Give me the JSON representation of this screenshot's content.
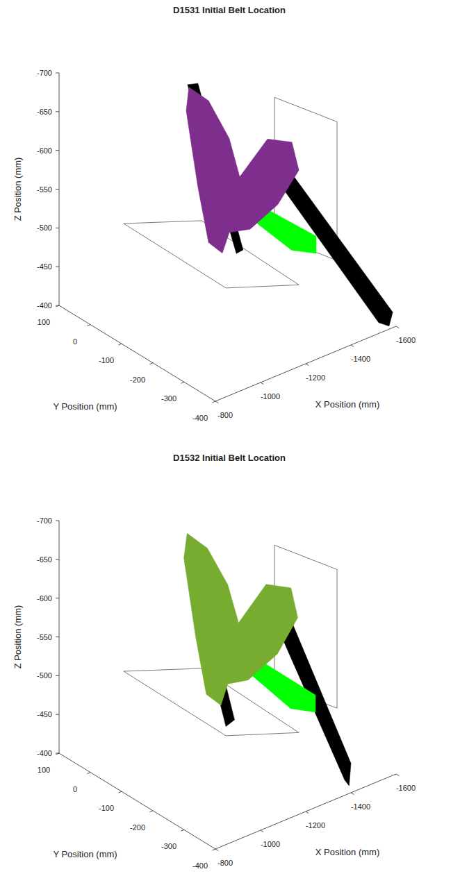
{
  "chart_data": [
    {
      "type": "scatter3d",
      "title": "D1531 Initial Belt Location",
      "xlabel": "X Position (mm)",
      "ylabel": "Y Position (mm)",
      "zlabel": "Z Position (mm)",
      "xlim": [
        -1600,
        -800
      ],
      "ylim": [
        -400,
        100
      ],
      "zlim": [
        -700,
        -400
      ],
      "xticks": [
        -1600,
        -1400,
        -1200,
        -1000,
        -800
      ],
      "yticks": [
        -400,
        -300,
        -200,
        -100,
        0,
        100
      ],
      "zticks": [
        -700,
        -650,
        -600,
        -550,
        -500,
        -450,
        -400
      ],
      "series": [
        {
          "type": "line",
          "color": "#555555",
          "values": [
            [
              -809,
              -100,
              -554
            ],
            [
              -1154,
              -100,
              -516
            ],
            [
              -1308,
              -300,
              -464
            ],
            [
              -985,
              -300,
              -499
            ]
          ]
        },
        {
          "type": "line",
          "color": "#555555",
          "values": [
            [
              -1477,
              -100,
              -636
            ],
            [
              -1477,
              -300,
              -654
            ],
            [
              -1477,
              -300,
              -475
            ],
            [
              -1477,
              -100,
              -457
            ]
          ]
        },
        {
          "type": "area",
          "color": "#000000",
          "values": [
            [
              -1092,
              -100,
              -699
            ],
            [
              -1138,
              -100,
              -695
            ],
            [
              -1338,
              -100,
              -456
            ],
            [
              -1308,
              -100,
              -455
            ]
          ]
        },
        {
          "type": "area",
          "color": "#000000",
          "values": [
            [
              -1369,
              -200,
              -580
            ],
            [
              -1415,
              -200,
              -570
            ],
            [
              -1585,
              -400,
              -420
            ],
            [
              -1569,
              -400,
              -404
            ],
            [
              -1523,
              -400,
              -414
            ],
            [
              -1354,
              -200,
              -567
            ]
          ]
        },
        {
          "type": "area",
          "color": "#00ff00",
          "values": [
            [
              -1123,
              -200,
              -594
            ],
            [
              -1185,
              -200,
              -571
            ],
            [
              -1523,
              -200,
              -476
            ],
            [
              -1523,
              -200,
              -454
            ],
            [
              -1415,
              -200,
              -471
            ],
            [
              -1138,
              -200,
              -567
            ]
          ]
        },
        {
          "type": "area",
          "color": "#7e2f8e",
          "values": [
            [
              -1098,
              -100,
              -695
            ],
            [
              -1185,
              -100,
              -667
            ],
            [
              -1277,
              -100,
              -607
            ],
            [
              -1323,
              -100,
              -552
            ],
            [
              -1446,
              -100,
              -586
            ],
            [
              -1554,
              -100,
              -569
            ],
            [
              -1585,
              -100,
              -529
            ],
            [
              -1492,
              -100,
              -496
            ],
            [
              -1369,
              -100,
              -479
            ],
            [
              -1277,
              -100,
              -486
            ],
            [
              -1246,
              -100,
              -463
            ],
            [
              -1185,
              -100,
              -484
            ],
            [
              -1138,
              -100,
              -561
            ],
            [
              -1086,
              -100,
              -666
            ]
          ]
        }
      ]
    },
    {
      "type": "scatter3d",
      "title": "D1532 Initial Belt Location",
      "xlabel": "X Position (mm)",
      "ylabel": "Y Position (mm)",
      "zlabel": "Z Position (mm)",
      "xlim": [
        -1600,
        -800
      ],
      "ylim": [
        -400,
        100
      ],
      "zlim": [
        -700,
        -400
      ],
      "xticks": [
        -1600,
        -1400,
        -1200,
        -1000,
        -800
      ],
      "yticks": [
        -400,
        -300,
        -200,
        -100,
        0,
        100
      ],
      "zticks": [
        -700,
        -650,
        -600,
        -550,
        -500,
        -450,
        -400
      ],
      "series": [
        {
          "type": "line",
          "color": "#555555",
          "values": [
            [
              -809,
              -100,
              -554
            ],
            [
              -1154,
              -100,
              -516
            ],
            [
              -1308,
              -300,
              -464
            ],
            [
              -985,
              -300,
              -499
            ]
          ]
        },
        {
          "type": "line",
          "color": "#555555",
          "values": [
            [
              -1477,
              -100,
              -636
            ],
            [
              -1477,
              -300,
              -654
            ],
            [
              -1477,
              -300,
              -475
            ],
            [
              -1477,
              -100,
              -457
            ]
          ]
        },
        {
          "type": "area",
          "color": "#000000",
          "values": [
            [
              -1080,
              -100,
              -660
            ],
            [
              -1120,
              -100,
              -665
            ],
            [
              -1300,
              -100,
              -432
            ],
            [
              -1262,
              -100,
              -428
            ]
          ]
        },
        {
          "type": "area",
          "color": "#000000",
          "values": [
            [
              -1380,
              -200,
              -575
            ],
            [
              -1420,
              -200,
              -565
            ],
            [
              -1400,
              -400,
              -438
            ],
            [
              -1392,
              -400,
              -410
            ],
            [
              -1372,
              -400,
              -420
            ],
            [
              -1362,
              -200,
              -562
            ]
          ]
        },
        {
          "type": "area",
          "color": "#00ff00",
          "values": [
            [
              -1130,
              -200,
              -585
            ],
            [
              -1190,
              -200,
              -562
            ],
            [
              -1520,
              -200,
              -462
            ],
            [
              -1520,
              -200,
              -440
            ],
            [
              -1410,
              -200,
              -458
            ],
            [
              -1145,
              -200,
              -556
            ]
          ]
        },
        {
          "type": "area",
          "color": "#77ac30",
          "values": [
            [
              -1090,
              -100,
              -698
            ],
            [
              -1180,
              -100,
              -668
            ],
            [
              -1270,
              -100,
              -610
            ],
            [
              -1318,
              -100,
              -555
            ],
            [
              -1440,
              -100,
              -590
            ],
            [
              -1550,
              -100,
              -572
            ],
            [
              -1580,
              -100,
              -530
            ],
            [
              -1490,
              -100,
              -494
            ],
            [
              -1360,
              -100,
              -476
            ],
            [
              -1270,
              -100,
              -482
            ],
            [
              -1240,
              -100,
              -458
            ],
            [
              -1175,
              -100,
              -480
            ],
            [
              -1128,
              -100,
              -560
            ],
            [
              -1076,
              -100,
              -668
            ]
          ]
        }
      ]
    }
  ]
}
